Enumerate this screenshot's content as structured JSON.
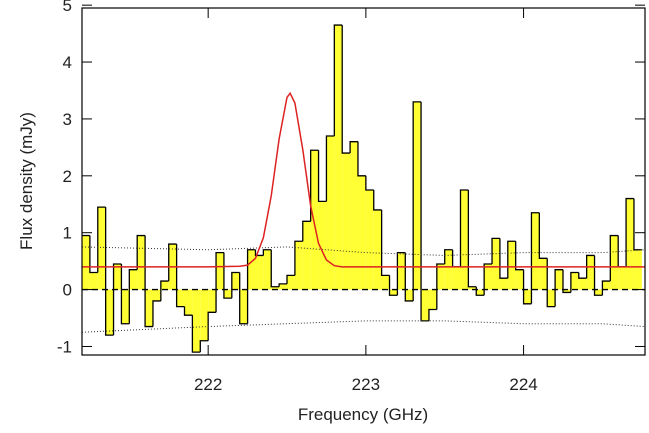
{
  "chart_data": {
    "type": "step-histogram",
    "xlabel": "Frequency (GHz)",
    "ylabel": "Flux density (mJy)",
    "xlim": [
      221.2,
      224.77
    ],
    "ylim": [
      -1.15,
      4.95
    ],
    "xticks": [
      222,
      223,
      224
    ],
    "yticks": [
      -1,
      0,
      1,
      2,
      3,
      4,
      5
    ],
    "reference_line": 0,
    "bins": [
      221.2,
      221.25,
      221.3,
      221.35,
      221.4,
      221.45,
      221.5,
      221.55,
      221.6,
      221.65,
      221.7,
      221.75,
      221.8,
      221.85,
      221.9,
      221.95,
      222.0,
      222.05,
      222.1,
      222.15,
      222.2,
      222.25,
      222.3,
      222.35,
      222.4,
      222.45,
      222.5,
      222.55,
      222.6,
      222.65,
      222.7,
      222.75,
      222.8,
      222.85,
      222.9,
      222.95,
      223.0,
      223.05,
      223.1,
      223.15,
      223.2,
      223.25,
      223.3,
      223.35,
      223.4,
      223.45,
      223.5,
      223.55,
      223.6,
      223.65,
      223.7,
      223.75,
      223.8,
      223.85,
      223.9,
      223.95,
      224.0,
      224.05,
      224.1,
      224.15,
      224.2,
      224.25,
      224.3,
      224.35,
      224.4,
      224.45,
      224.5,
      224.55,
      224.6,
      224.65,
      224.7,
      224.75
    ],
    "values": [
      0.95,
      0.3,
      1.45,
      -0.8,
      0.45,
      -0.6,
      0.35,
      0.95,
      -0.65,
      -0.2,
      0.15,
      0.8,
      -0.3,
      -0.45,
      -1.1,
      -0.9,
      -0.4,
      0.65,
      -0.15,
      0.3,
      -0.6,
      0.7,
      0.6,
      0.7,
      0.05,
      0.1,
      0.25,
      0.85,
      1.2,
      2.45,
      1.55,
      2.7,
      4.65,
      2.4,
      2.6,
      2.0,
      1.75,
      1.4,
      0.25,
      -0.1,
      0.65,
      -0.2,
      3.3,
      -0.55,
      -0.35,
      0.45,
      0.7,
      0.4,
      1.75,
      0.05,
      -0.1,
      0.45,
      0.9,
      0.2,
      0.85,
      0.35,
      -0.25,
      1.35,
      0.55,
      -0.3,
      0.35,
      -0.05,
      0.3,
      0.2,
      0.6,
      -0.1,
      0.15,
      0.95,
      0.4,
      1.6,
      0.7
    ],
    "fill_color": "#ffff33",
    "edge_color": "#000000",
    "fit": {
      "color": "#dd2222",
      "x": [
        221.2,
        222.0,
        222.2,
        222.25,
        222.3,
        222.35,
        222.4,
        222.45,
        222.5,
        222.52,
        222.55,
        222.6,
        222.65,
        222.7,
        222.75,
        222.8,
        222.85,
        223.0,
        224.77
      ],
      "values": [
        0.4,
        0.4,
        0.41,
        0.43,
        0.55,
        0.91,
        1.65,
        2.65,
        3.38,
        3.45,
        3.28,
        2.46,
        1.47,
        0.81,
        0.52,
        0.42,
        0.4,
        0.4,
        0.4
      ]
    },
    "noise": {
      "color": "#333333",
      "x": [
        221.2,
        222.0,
        222.5,
        223.0,
        223.5,
        224.0,
        224.5,
        224.77
      ],
      "upper": [
        0.75,
        0.7,
        0.75,
        0.65,
        0.6,
        0.65,
        0.65,
        0.7
      ],
      "lower": [
        -0.75,
        -0.65,
        -0.6,
        -0.55,
        -0.55,
        -0.6,
        -0.6,
        -0.65
      ]
    }
  }
}
